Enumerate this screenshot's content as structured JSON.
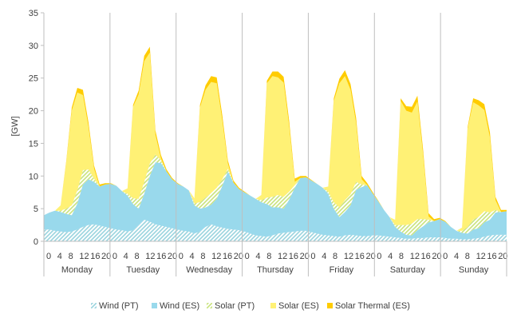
{
  "chart_data": {
    "type": "area",
    "stacked": true,
    "ylabel": "[GW]",
    "ylim": [
      0,
      35
    ],
    "yticks": [
      0,
      5,
      10,
      15,
      20,
      25,
      30,
      35
    ],
    "grid": false,
    "legend_position": "bottom",
    "days": [
      "Monday",
      "Tuesday",
      "Wednesday",
      "Thursday",
      "Friday",
      "Saturday",
      "Sunday"
    ],
    "hour_ticks": [
      "0",
      "4",
      "8",
      "12",
      "16",
      "20"
    ],
    "hours": [
      0,
      2,
      4,
      6,
      8,
      10,
      12,
      14,
      16,
      18,
      20,
      22
    ],
    "colors": {
      "wind_pt": "#9ad4de",
      "wind_es": "#99d9ec",
      "solar_pt": "#c9e37d",
      "solar_es": "#fff175",
      "solar_thermal_es": "#ffcc00",
      "axis": "#bfbfbf"
    },
    "series": [
      {
        "name": "Wind (PT)",
        "key": "wind_pt",
        "pattern": "hatch",
        "values": [
          1.8,
          1.8,
          1.6,
          1.5,
          1.4,
          1.5,
          1.8,
          2.2,
          2.5,
          2.6,
          2.4,
          2.2,
          2.0,
          1.8,
          1.7,
          1.5,
          1.7,
          2.5,
          3.3,
          3.0,
          2.6,
          2.4,
          2.2,
          2.0,
          1.8,
          1.6,
          1.5,
          1.2,
          1.5,
          2.2,
          2.6,
          2.3,
          2.1,
          1.9,
          1.8,
          1.7,
          1.5,
          1.2,
          0.9,
          0.8,
          0.7,
          0.9,
          1.2,
          1.3,
          1.4,
          1.5,
          1.6,
          1.6,
          1.4,
          1.2,
          1.0,
          0.9,
          0.8,
          0.7,
          0.9,
          1.0,
          0.9,
          0.8,
          0.8,
          0.9,
          0.9,
          0.8,
          0.7,
          0.6,
          0.5,
          0.4,
          0.4,
          0.5,
          0.5,
          0.6,
          0.6,
          0.6,
          0.5,
          0.4,
          0.4,
          0.3,
          0.3,
          0.4,
          0.5,
          0.7,
          0.9,
          1.0,
          1.0,
          1.0
        ]
      },
      {
        "name": "Wind (ES)",
        "key": "wind_es",
        "pattern": "solid",
        "values": [
          2.2,
          2.6,
          3.1,
          3.0,
          2.8,
          2.5,
          4.0,
          6.5,
          7.0,
          6.5,
          6.0,
          6.5,
          6.8,
          6.7,
          6.0,
          5.5,
          4.0,
          2.5,
          4.0,
          7.0,
          9.5,
          9.6,
          8.5,
          7.5,
          7.0,
          6.8,
          6.3,
          4.3,
          3.5,
          3.0,
          3.0,
          4.2,
          6.4,
          8.8,
          7.2,
          6.3,
          6.0,
          5.8,
          5.6,
          5.2,
          5.0,
          4.3,
          4.0,
          3.7,
          5.0,
          6.7,
          8.1,
          8.2,
          7.9,
          7.6,
          7.2,
          6.4,
          4.2,
          3.0,
          3.6,
          4.5,
          7.0,
          7.5,
          7.8,
          6.4,
          5.2,
          4.0,
          3.0,
          1.6,
          1.0,
          0.6,
          0.5,
          1.2,
          1.8,
          2.3,
          2.5,
          2.8,
          2.5,
          1.8,
          1.2,
          1.0,
          0.9,
          1.4,
          1.5,
          2.2,
          2.4,
          3.4,
          3.5,
          3.6
        ]
      },
      {
        "name": "Solar (PT)",
        "key": "solar_pt",
        "pattern": "hatch",
        "values": [
          0,
          0,
          0,
          0.2,
          0.8,
          1.5,
          2.0,
          2.2,
          1.5,
          0.5,
          0,
          0,
          0,
          0,
          0,
          0.3,
          0.9,
          1.5,
          1.8,
          1.9,
          1.2,
          0.4,
          0,
          0,
          0,
          0,
          0,
          0.3,
          1.0,
          1.5,
          1.8,
          1.7,
          1.0,
          0.4,
          0,
          0,
          0,
          0,
          0,
          0.3,
          1.0,
          1.6,
          1.9,
          1.8,
          1.2,
          0.4,
          0,
          0,
          0,
          0,
          0,
          0.3,
          1.0,
          1.5,
          1.8,
          1.7,
          1.2,
          0.4,
          0,
          0,
          0,
          0,
          0,
          0.3,
          1.0,
          1.5,
          1.8,
          1.7,
          1.1,
          0.4,
          0,
          0,
          0,
          0,
          0,
          0.3,
          1.0,
          1.5,
          1.8,
          1.7,
          1.1,
          0.4,
          0,
          0
        ]
      },
      {
        "name": "Solar (ES)",
        "key": "solar_es",
        "pattern": "solid",
        "values": [
          0,
          0,
          0,
          0.8,
          7.0,
          14.5,
          15.0,
          11.5,
          6.5,
          1.5,
          0,
          0,
          0,
          0,
          0,
          0.8,
          14.0,
          16.0,
          18.5,
          17.0,
          3.0,
          0.3,
          0,
          0,
          0,
          0,
          0,
          0.8,
          14.5,
          16.5,
          17.0,
          16.0,
          9.0,
          0.8,
          0,
          0,
          0,
          0,
          0,
          0.8,
          17.5,
          18.5,
          18.0,
          17.5,
          10.0,
          0.5,
          0,
          0,
          0,
          0,
          0,
          0.8,
          15.5,
          19.0,
          19.0,
          16.0,
          9.0,
          0.8,
          0,
          0,
          0,
          0,
          0,
          0.8,
          19.0,
          17.5,
          17.0,
          18.0,
          10.0,
          0.5,
          0,
          0,
          0,
          0,
          0,
          0.5,
          15.0,
          18.0,
          17.0,
          15.5,
          11.5,
          1.5,
          0,
          0
        ]
      },
      {
        "name": "Solar Thermal (ES)",
        "key": "solar_thermal_es",
        "pattern": "solid",
        "values": [
          0,
          0,
          0,
          0,
          0.2,
          0.5,
          0.7,
          0.8,
          0.7,
          0.5,
          0.3,
          0.2,
          0.1,
          0,
          0,
          0,
          0.3,
          0.6,
          0.8,
          0.9,
          0.7,
          0.5,
          0.3,
          0.2,
          0.1,
          0,
          0,
          0,
          0.4,
          0.7,
          0.9,
          0.9,
          0.8,
          0.5,
          0.3,
          0.2,
          0.1,
          0,
          0,
          0,
          0.4,
          0.7,
          0.9,
          0.9,
          0.8,
          0.5,
          0.3,
          0.2,
          0.1,
          0,
          0,
          0,
          0.4,
          0.7,
          0.9,
          0.9,
          0.8,
          0.5,
          0.3,
          0.2,
          0.1,
          0,
          0,
          0,
          0.4,
          0.7,
          0.9,
          0.9,
          0.8,
          0.5,
          0.3,
          0.2,
          0.1,
          0,
          0,
          0,
          0.3,
          0.6,
          0.8,
          0.9,
          0.8,
          0.5,
          0.3,
          0.2
        ]
      }
    ]
  }
}
